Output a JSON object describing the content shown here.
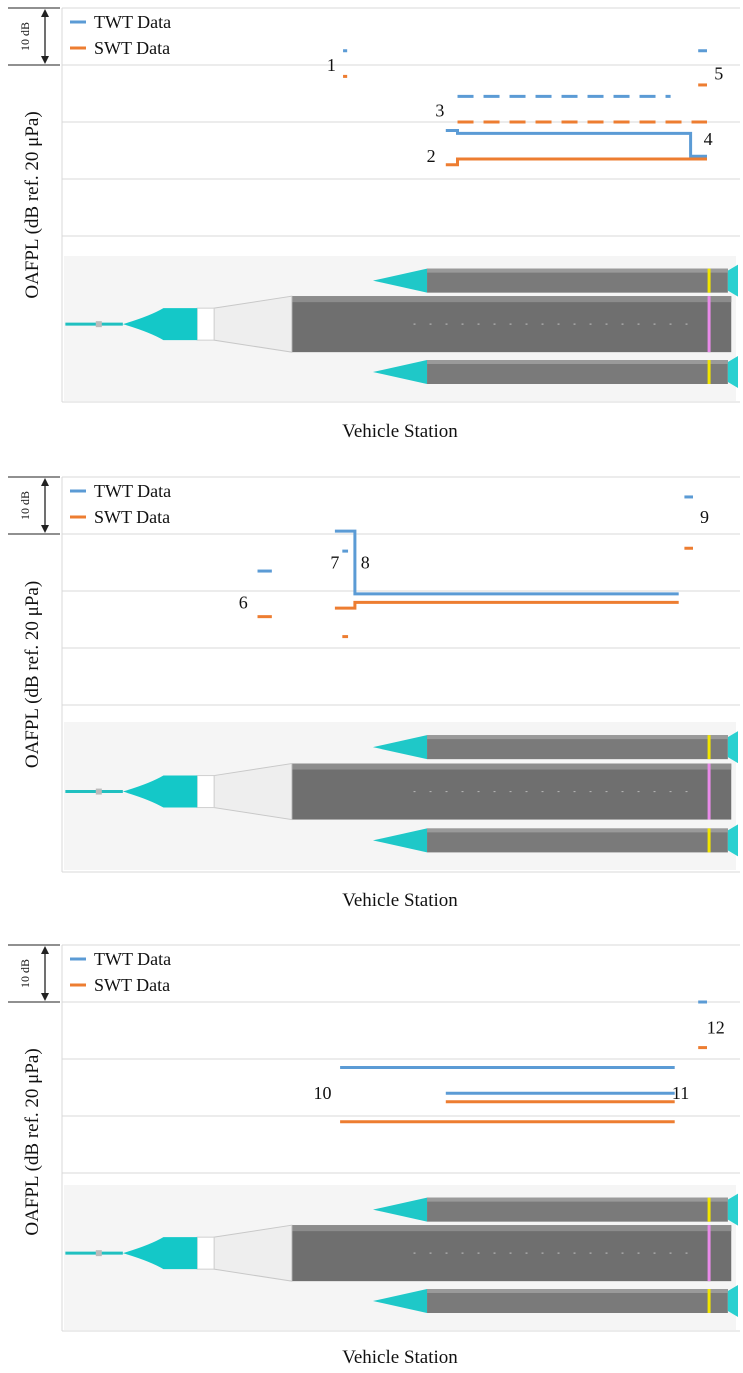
{
  "legend": [
    {
      "label": "TWT Data",
      "color": "#5b9bd5"
    },
    {
      "label": "SWT Data",
      "color": "#ed7d31"
    }
  ],
  "common": {
    "ylabel": "OAFPL (dB ref. 20 μPa)",
    "xlabel": "Vehicle Station",
    "scale_label": "10 dB"
  },
  "chart_data": [
    {
      "type": "line",
      "xlabel": "Vehicle Station",
      "ylabel": "OAFPL (dB ref. 20 μPa)",
      "grid": true,
      "legend_position": "top-left",
      "x_range": [
        0,
        100
      ],
      "y_range": [
        0,
        60
      ],
      "series": [
        {
          "name": "TWT Data",
          "color": "#5b9bd5",
          "segments": [
            {
              "kind": "dash",
              "x": [
                38.0,
                38.7
              ],
              "y": 52.5
            },
            {
              "kind": "dashed",
              "x": [
                57.5,
                93.8
              ],
              "y": 44.5
            },
            {
              "kind": "solid",
              "points": [
                [
                  55.5,
                  38.5
                ],
                [
                  57.5,
                  38.5
                ],
                [
                  57.5,
                  38.0
                ],
                [
                  97.2,
                  38.0
                ],
                [
                  97.2,
                  34.0
                ],
                [
                  100.0,
                  34.0
                ]
              ]
            },
            {
              "kind": "dash",
              "x": [
                98.5,
                100.0
              ],
              "y": 52.5
            }
          ]
        },
        {
          "name": "SWT Data",
          "color": "#ed7d31",
          "segments": [
            {
              "kind": "dash",
              "x": [
                38.0,
                38.7
              ],
              "y": 48.0
            },
            {
              "kind": "dashed",
              "x": [
                57.5,
                100.0
              ],
              "y": 40.0
            },
            {
              "kind": "solid",
              "points": [
                [
                  55.5,
                  32.5
                ],
                [
                  57.5,
                  32.5
                ],
                [
                  57.5,
                  33.5
                ],
                [
                  100.0,
                  33.5
                ]
              ]
            },
            {
              "kind": "dash",
              "x": [
                98.5,
                100.0
              ],
              "y": 46.5
            }
          ]
        }
      ],
      "annotations": [
        {
          "text": "1",
          "x": 36.0,
          "y": 50.0
        },
        {
          "text": "2",
          "x": 53.0,
          "y": 34.0
        },
        {
          "text": "3",
          "x": 54.5,
          "y": 42.0
        },
        {
          "text": "4",
          "x": 100.2,
          "y": 37.0
        },
        {
          "text": "5",
          "x": 102.0,
          "y": 48.5
        }
      ]
    },
    {
      "type": "line",
      "xlabel": "Vehicle Station",
      "ylabel": "OAFPL (dB ref. 20 μPa)",
      "grid": true,
      "legend_position": "top-left",
      "x_range": [
        0,
        100
      ],
      "y_range": [
        0,
        60
      ],
      "series": [
        {
          "name": "TWT Data",
          "color": "#5b9bd5",
          "segments": [
            {
              "kind": "dash",
              "x": [
                24.0,
                26.5
              ],
              "y": 43.5
            },
            {
              "kind": "solid",
              "points": [
                [
                  37.5,
                  50.5
                ],
                [
                  41.0,
                  50.5
                ],
                [
                  41.0,
                  39.5
                ],
                [
                  97.5,
                  39.5
                ]
              ]
            },
            {
              "kind": "dash",
              "x": [
                38.8,
                39.8
              ],
              "y": 47.0
            },
            {
              "kind": "dash",
              "x": [
                98.5,
                100.0
              ],
              "y": 56.5
            }
          ]
        },
        {
          "name": "SWT Data",
          "color": "#ed7d31",
          "segments": [
            {
              "kind": "dash",
              "x": [
                24.0,
                26.5
              ],
              "y": 35.5
            },
            {
              "kind": "solid",
              "points": [
                [
                  37.5,
                  37.0
                ],
                [
                  41.0,
                  37.0
                ],
                [
                  41.0,
                  38.0
                ],
                [
                  97.5,
                  38.0
                ]
              ]
            },
            {
              "kind": "dash",
              "x": [
                38.8,
                39.8
              ],
              "y": 32.0
            },
            {
              "kind": "dash",
              "x": [
                98.5,
                100.0
              ],
              "y": 47.5
            }
          ]
        }
      ],
      "annotations": [
        {
          "text": "6",
          "x": 21.5,
          "y": 38.0
        },
        {
          "text": "7",
          "x": 37.5,
          "y": 45.0
        },
        {
          "text": "8",
          "x": 42.8,
          "y": 45.0
        },
        {
          "text": "9",
          "x": 102.0,
          "y": 53.0
        }
      ]
    },
    {
      "type": "line",
      "xlabel": "Vehicle Station",
      "ylabel": "OAFPL (dB ref. 20 μPa)",
      "grid": true,
      "legend_position": "top-left",
      "x_range": [
        0,
        100
      ],
      "y_range": [
        0,
        60
      ],
      "series": [
        {
          "name": "TWT Data",
          "color": "#5b9bd5",
          "segments": [
            {
              "kind": "solid",
              "points": [
                [
                  37.5,
                  38.5
                ],
                [
                  94.5,
                  38.5
                ]
              ]
            },
            {
              "kind": "solid",
              "points": [
                [
                  55.5,
                  34.0
                ],
                [
                  94.5,
                  34.0
                ]
              ]
            },
            {
              "kind": "dash",
              "x": [
                98.5,
                100.0
              ],
              "y": 50.0
            }
          ]
        },
        {
          "name": "SWT Data",
          "color": "#ed7d31",
          "segments": [
            {
              "kind": "solid",
              "points": [
                [
                  55.5,
                  32.5
                ],
                [
                  94.5,
                  32.5
                ]
              ]
            },
            {
              "kind": "solid",
              "points": [
                [
                  37.5,
                  29.0
                ],
                [
                  94.5,
                  29.0
                ]
              ]
            },
            {
              "kind": "dash",
              "x": [
                98.5,
                100.0
              ],
              "y": 42.0
            }
          ]
        }
      ],
      "annotations": [
        {
          "text": "10",
          "x": 34.5,
          "y": 34.0
        },
        {
          "text": "11",
          "x": 95.5,
          "y": 34.0
        },
        {
          "text": "12",
          "x": 101.5,
          "y": 45.5
        }
      ]
    }
  ]
}
